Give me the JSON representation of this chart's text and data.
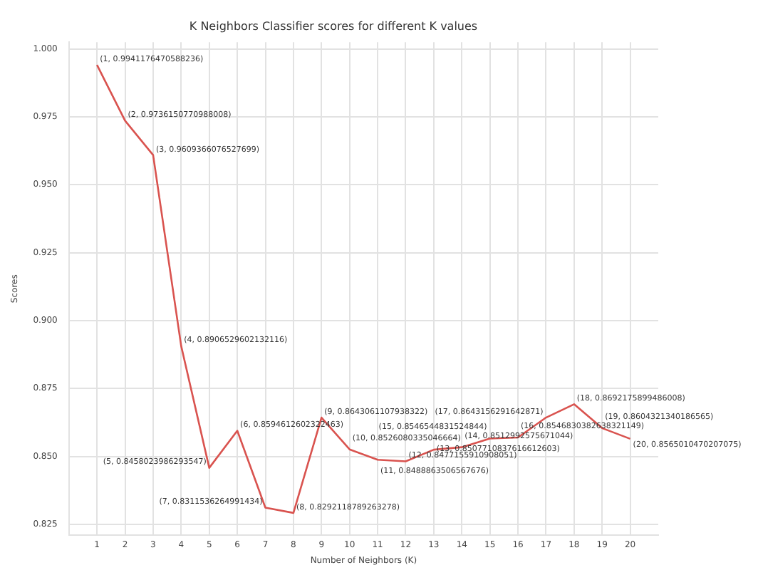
{
  "chart_data": {
    "type": "line",
    "title": "K Neighbors Classifier scores for different K values",
    "xlabel": "Number of Neighbors (K)",
    "ylabel": "Scores",
    "x": [
      1,
      2,
      3,
      4,
      5,
      6,
      7,
      8,
      9,
      10,
      11,
      12,
      13,
      14,
      15,
      16,
      17,
      18,
      19,
      20
    ],
    "series": [
      {
        "color": "#d9534f",
        "values": [
          0.9941176470588236,
          0.9736150770988008,
          0.9609366076527699,
          0.8906529602132116,
          0.8458023986293547,
          0.8594612602322463,
          0.8311536264991434,
          0.8292118789263278,
          0.8643061107938322,
          0.8526080335046664,
          0.8488,
          0.8482,
          0.8525,
          0.8534,
          0.8566,
          0.857,
          0.8643156291642871,
          0.8692175899486008,
          0.8604321340186565,
          0.8565010470207075
        ],
        "value_labels": [
          "(1, 0.9941176470588236)",
          "(2, 0.9736150770988008)",
          "(3, 0.9609366076527699)",
          "(4, 0.8906529602132116)",
          "(5, 0.8458023986293547)",
          "(6, 0.8594612602322463)",
          "(7, 0.8311536264991434)",
          "(8, 0.8292118789263278)",
          "(9, 0.8643061107938322)",
          "(10, 0.8526080335046664)",
          "(11, 0.8488863506567676)",
          "(12, 0.8477155910908051)",
          "(13, 0.8507710837616612603)",
          "(14, 0.8512992575671044)",
          "(15, 0.8546544831524844)",
          "(16, 0.8546830382638321149)",
          "(17, 0.8643156291642871)",
          "(18, 0.8692175899486008)",
          "(19, 0.8604321340186565)",
          "(20, 0.8565010470207075)"
        ]
      }
    ],
    "xlim": [
      0,
      21
    ],
    "xticks": [
      1,
      2,
      3,
      4,
      5,
      6,
      7,
      8,
      9,
      10,
      11,
      12,
      13,
      14,
      15,
      16,
      17,
      18,
      19,
      20
    ],
    "ylim": [
      0.821,
      1.0025
    ],
    "yticks": [
      0.825,
      {
        "value": 0.85,
        "label": "0.850"
      },
      0.875,
      {
        "value": 0.9,
        "label": "0.900"
      },
      0.925,
      {
        "value": 0.95,
        "label": "0.950"
      },
      0.975,
      {
        "value": 1.0,
        "label": "1.000"
      }
    ],
    "grid": true,
    "legend": false,
    "marker": "none",
    "line_style": "solid"
  }
}
